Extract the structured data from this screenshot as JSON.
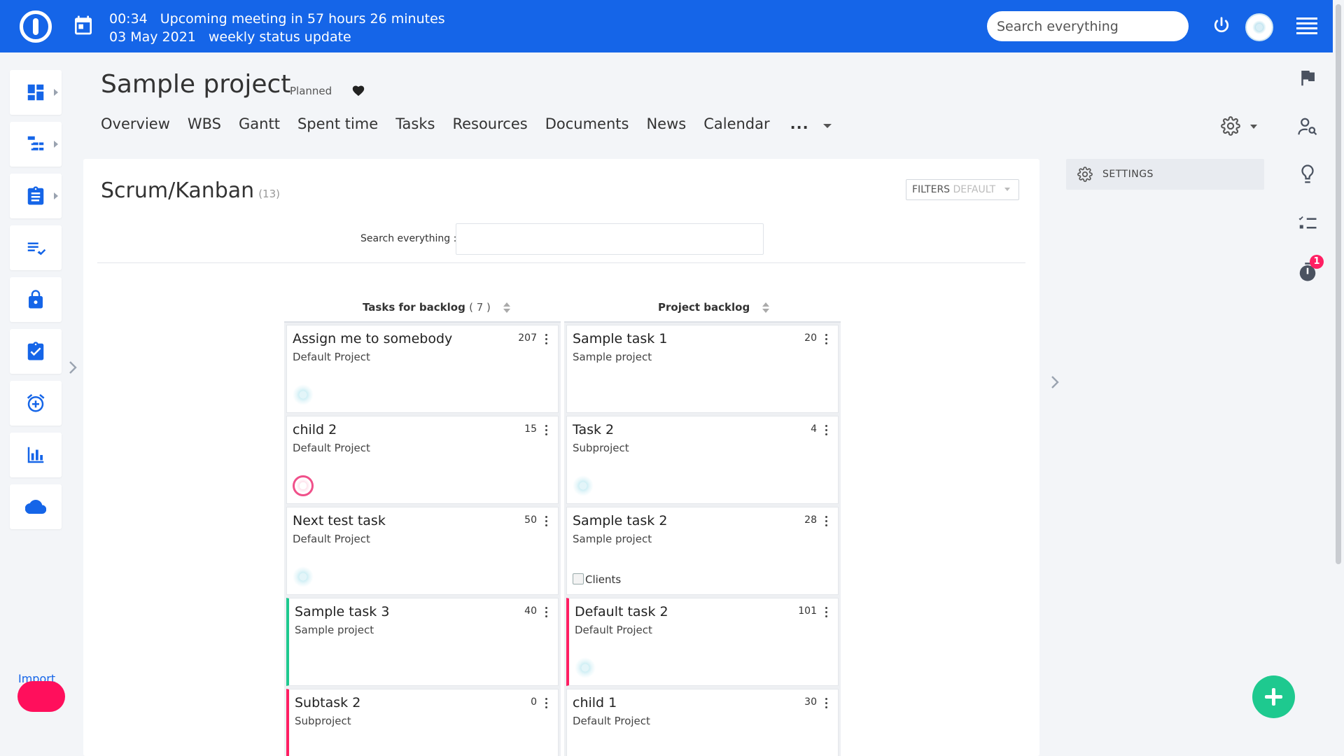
{
  "topbar": {
    "meeting_time": "00:34",
    "meeting_text": "Upcoming meeting in 57 hours 26 minutes",
    "meeting_date": "03 May 2021",
    "meeting_name": "weekly status update",
    "search_placeholder": "Search everything",
    "accent": "#1565e8"
  },
  "sidebar": {
    "items": [
      {
        "icon": "dashboard-icon",
        "has_arrow": true
      },
      {
        "icon": "hierarchy-icon",
        "has_arrow": true
      },
      {
        "icon": "clipboard-icon",
        "has_arrow": true
      },
      {
        "icon": "checklist-icon",
        "has_arrow": false
      },
      {
        "icon": "lock-icon",
        "has_arrow": false
      },
      {
        "icon": "task-check-icon",
        "has_arrow": false
      },
      {
        "icon": "alarm-add-icon",
        "has_arrow": false
      },
      {
        "icon": "bar-chart-icon",
        "has_arrow": false
      },
      {
        "icon": "cloud-icon",
        "has_arrow": false
      }
    ],
    "import_label": "Import"
  },
  "project": {
    "title": "Sample project",
    "status": "Planned"
  },
  "tabs": [
    "Overview",
    "WBS",
    "Gantt",
    "Spent time",
    "Tasks",
    "Resources",
    "Documents",
    "News",
    "Calendar"
  ],
  "tabs_more": "...",
  "board": {
    "title": "Scrum/Kanban",
    "count": "(13)",
    "filters_label": "FILTERS",
    "filters_value": "DEFAULT",
    "search_label": "Search everything :",
    "search_value": "",
    "columns": [
      {
        "title": "Tasks for backlog",
        "count": "( 7 )",
        "cards": [
          {
            "title": "Assign me to somebody",
            "project": "Default Project",
            "number": "207",
            "avatar": "snow",
            "bar": ""
          },
          {
            "title": "child 2",
            "project": "Default Project",
            "number": "15",
            "avatar": "pink",
            "bar": ""
          },
          {
            "title": "Next test task",
            "project": "Default Project",
            "number": "50",
            "avatar": "snow",
            "bar": ""
          },
          {
            "title": "Sample task 3",
            "project": "Sample project",
            "number": "40",
            "avatar": "",
            "bar": "green"
          },
          {
            "title": "Subtask 2",
            "project": "Subproject",
            "number": "0",
            "avatar": "",
            "bar": "pink"
          }
        ]
      },
      {
        "title": "Project backlog",
        "count": "",
        "cards": [
          {
            "title": "Sample task 1",
            "project": "Sample project",
            "number": "20",
            "avatar": "",
            "bar": ""
          },
          {
            "title": "Task 2",
            "project": "Subproject",
            "number": "4",
            "avatar": "snow",
            "bar": ""
          },
          {
            "title": "Sample task 2",
            "project": "Sample project",
            "number": "28",
            "avatar": "broken",
            "avatar_alt": "Clients",
            "bar": ""
          },
          {
            "title": "Default task 2",
            "project": "Default Project",
            "number": "101",
            "avatar": "snow",
            "bar": "pink"
          },
          {
            "title": "child 1",
            "project": "Default Project",
            "number": "30",
            "avatar": "",
            "bar": ""
          }
        ]
      }
    ]
  },
  "settings_panel": {
    "label": "SETTINGS"
  },
  "right_rail": {
    "icons": [
      "flag-icon",
      "user-search-icon",
      "lightbulb-icon",
      "checklist-icon",
      "timer-icon"
    ],
    "timer_badge": "1"
  }
}
